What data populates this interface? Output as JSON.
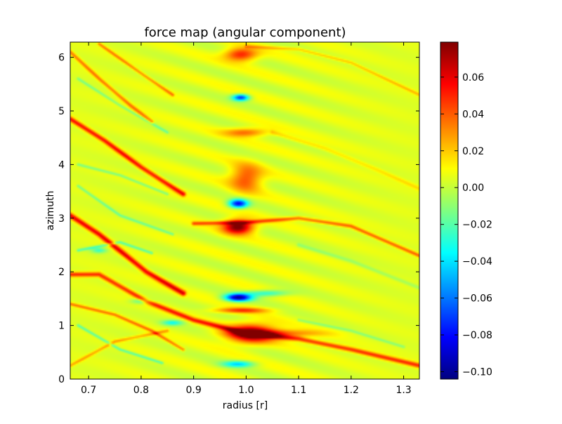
{
  "chart_data": {
    "type": "heatmap",
    "title": "force map (angular component)",
    "xlabel": "radius [r]",
    "ylabel": "azimuth",
    "xlim": [
      0.665,
      1.33
    ],
    "ylim": [
      0,
      6.283
    ],
    "xticks": [
      0.7,
      0.8,
      0.9,
      1.0,
      1.1,
      1.2,
      1.3
    ],
    "xtick_labels": [
      "0.7",
      "0.8",
      "0.9",
      "1.0",
      "1.1",
      "1.2",
      "1.3"
    ],
    "yticks": [
      0,
      1,
      2,
      3,
      4,
      5,
      6
    ],
    "ytick_labels": [
      "0",
      "1",
      "2",
      "3",
      "4",
      "5",
      "6"
    ],
    "colormap": "jet",
    "colorbar": {
      "range": [
        -0.104,
        0.079
      ],
      "ticks": [
        -0.1,
        -0.08,
        -0.06,
        -0.04,
        -0.02,
        0.0,
        0.02,
        0.04,
        0.06
      ],
      "tick_labels": [
        "−0.10",
        "−0.08",
        "−0.06",
        "−0.04",
        "−0.02",
        "0.00",
        "0.02",
        "0.04",
        "0.06"
      ]
    },
    "background_value": 0.005,
    "features": [
      {
        "kind": "spiral_arm",
        "points": [
          [
            0.665,
            1.95
          ],
          [
            0.72,
            1.95
          ],
          [
            0.81,
            1.45
          ],
          [
            0.9,
            1.1
          ],
          [
            1.0,
            0.85
          ],
          [
            1.1,
            0.75
          ],
          [
            1.2,
            0.55
          ],
          [
            1.33,
            0.25
          ]
        ],
        "amplitude": 0.045,
        "width": 0.09
      },
      {
        "kind": "spiral_arm",
        "points": [
          [
            0.665,
            3.05
          ],
          [
            0.72,
            2.7
          ],
          [
            0.81,
            2.0
          ],
          [
            0.88,
            1.6
          ]
        ],
        "amplitude": 0.055,
        "width": 0.1
      },
      {
        "kind": "spiral_arm",
        "points": [
          [
            0.9,
            2.9
          ],
          [
            1.0,
            2.92
          ],
          [
            1.1,
            3.0
          ],
          [
            1.2,
            2.85
          ],
          [
            1.33,
            2.3
          ]
        ],
        "amplitude": 0.035,
        "width": 0.07
      },
      {
        "kind": "spiral_arm",
        "points": [
          [
            0.665,
            4.85
          ],
          [
            0.73,
            4.45
          ],
          [
            0.8,
            3.95
          ],
          [
            0.88,
            3.45
          ]
        ],
        "amplitude": 0.05,
        "width": 0.09
      },
      {
        "kind": "spiral_arm",
        "points": [
          [
            0.665,
            6.1
          ],
          [
            0.72,
            5.6
          ],
          [
            0.78,
            5.1
          ],
          [
            0.82,
            4.8
          ]
        ],
        "amplitude": 0.03,
        "width": 0.07
      },
      {
        "kind": "spiral_arm",
        "points": [
          [
            0.72,
            6.25
          ],
          [
            0.8,
            5.7
          ],
          [
            0.86,
            5.3
          ]
        ],
        "amplitude": 0.028,
        "width": 0.06
      },
      {
        "kind": "spiral_arm",
        "points": [
          [
            1.0,
            6.2
          ],
          [
            1.1,
            6.15
          ],
          [
            1.2,
            5.9
          ],
          [
            1.33,
            5.3
          ]
        ],
        "amplitude": 0.018,
        "width": 0.06
      },
      {
        "kind": "spiral_arm",
        "points": [
          [
            1.05,
            4.6
          ],
          [
            1.15,
            4.3
          ],
          [
            1.25,
            3.9
          ],
          [
            1.33,
            3.55
          ]
        ],
        "amplitude": 0.012,
        "width": 0.08
      },
      {
        "kind": "spiral_arm",
        "points": [
          [
            0.665,
            0.25
          ],
          [
            0.75,
            0.7
          ],
          [
            0.85,
            0.9
          ]
        ],
        "amplitude": 0.022,
        "width": 0.06
      },
      {
        "kind": "spiral_arm",
        "points": [
          [
            0.665,
            1.4
          ],
          [
            0.75,
            1.2
          ],
          [
            0.82,
            0.9
          ],
          [
            0.88,
            0.55
          ]
        ],
        "amplitude": 0.03,
        "width": 0.06
      },
      {
        "kind": "spiral_arm",
        "points": [
          [
            0.68,
            1.0
          ],
          [
            0.76,
            0.55
          ],
          [
            0.84,
            0.3
          ]
        ],
        "amplitude": -0.025,
        "width": 0.05
      },
      {
        "kind": "spiral_arm",
        "points": [
          [
            0.68,
            2.4
          ],
          [
            0.76,
            2.55
          ],
          [
            0.82,
            2.35
          ]
        ],
        "amplitude": -0.025,
        "width": 0.05
      },
      {
        "kind": "spiral_arm",
        "points": [
          [
            0.68,
            4.0
          ],
          [
            0.76,
            3.8
          ],
          [
            0.85,
            3.45
          ]
        ],
        "amplitude": -0.02,
        "width": 0.05
      },
      {
        "kind": "spiral_arm",
        "points": [
          [
            0.68,
            5.6
          ],
          [
            0.76,
            5.1
          ],
          [
            0.85,
            4.6
          ]
        ],
        "amplitude": -0.018,
        "width": 0.05
      },
      {
        "kind": "spiral_arm",
        "points": [
          [
            0.68,
            3.6
          ],
          [
            0.76,
            3.05
          ],
          [
            0.86,
            2.7
          ]
        ],
        "amplitude": -0.02,
        "width": 0.05
      },
      {
        "kind": "spiral_arm",
        "points": [
          [
            1.1,
            2.5
          ],
          [
            1.2,
            2.2
          ],
          [
            1.33,
            1.7
          ]
        ],
        "amplitude": -0.012,
        "width": 0.07
      },
      {
        "kind": "spiral_arm",
        "points": [
          [
            1.1,
            1.1
          ],
          [
            1.2,
            0.9
          ],
          [
            1.3,
            0.6
          ]
        ],
        "amplitude": -0.015,
        "width": 0.05
      },
      {
        "kind": "spot",
        "x": 1.01,
        "y": 0.85,
        "amplitude": 0.075,
        "rx": 0.045,
        "ry": 0.17
      },
      {
        "kind": "spot",
        "x": 1.06,
        "y": 0.85,
        "amplitude": 0.035,
        "rx": 0.08,
        "ry": 0.07
      },
      {
        "kind": "spot",
        "x": 0.985,
        "y": 2.84,
        "amplitude": 0.08,
        "rx": 0.028,
        "ry": 0.13
      },
      {
        "kind": "spot",
        "x": 0.985,
        "y": 1.52,
        "amplitude": -0.1,
        "rx": 0.025,
        "ry": 0.07
      },
      {
        "kind": "spot",
        "x": 1.04,
        "y": 1.6,
        "amplitude": -0.035,
        "rx": 0.04,
        "ry": 0.06
      },
      {
        "kind": "spot",
        "x": 0.985,
        "y": 3.27,
        "amplitude": -0.085,
        "rx": 0.018,
        "ry": 0.08
      },
      {
        "kind": "spot",
        "x": 0.99,
        "y": 5.25,
        "amplitude": -0.075,
        "rx": 0.016,
        "ry": 0.06
      },
      {
        "kind": "spot",
        "x": 0.985,
        "y": 0.28,
        "amplitude": -0.045,
        "rx": 0.03,
        "ry": 0.06
      },
      {
        "kind": "spot",
        "x": 0.99,
        "y": 6.05,
        "amplitude": 0.05,
        "rx": 0.03,
        "ry": 0.12
      },
      {
        "kind": "spot",
        "x": 1.0,
        "y": 3.75,
        "amplitude": 0.04,
        "rx": 0.03,
        "ry": 0.25
      },
      {
        "kind": "spot",
        "x": 1.0,
        "y": 4.6,
        "amplitude": 0.035,
        "rx": 0.04,
        "ry": 0.08
      },
      {
        "kind": "spot",
        "x": 0.99,
        "y": 1.28,
        "amplitude": 0.04,
        "rx": 0.05,
        "ry": 0.05
      },
      {
        "kind": "spot",
        "x": 0.86,
        "y": 1.05,
        "amplitude": -0.035,
        "rx": 0.02,
        "ry": 0.05
      },
      {
        "kind": "spot",
        "x": 0.8,
        "y": 1.45,
        "amplitude": -0.025,
        "rx": 0.02,
        "ry": 0.05
      },
      {
        "kind": "spot",
        "x": 0.72,
        "y": 2.4,
        "amplitude": -0.03,
        "rx": 0.015,
        "ry": 0.05
      }
    ]
  }
}
